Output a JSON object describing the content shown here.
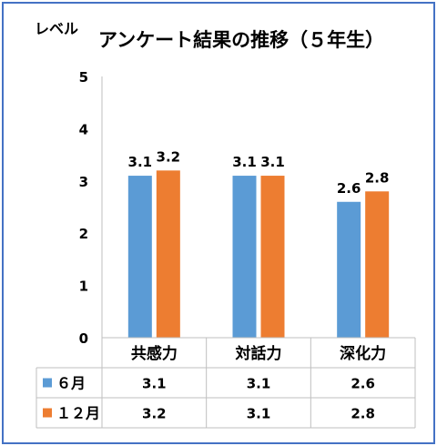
{
  "chart_data": {
    "type": "bar",
    "title": "アンケート結果の推移（５年生）",
    "ylabel": "レベル",
    "categories": [
      "共感力",
      "対話力",
      "深化力"
    ],
    "ylim": [
      0,
      5
    ],
    "yticks": [
      "0",
      "1",
      "2",
      "3",
      "4",
      "5"
    ],
    "series": [
      {
        "name": "６月",
        "color": "#5b9bd5",
        "values": [
          3.1,
          3.1,
          2.6
        ],
        "labels": [
          "3.1",
          "3.1",
          "2.6"
        ]
      },
      {
        "name": "１２月",
        "color": "#ed7d31",
        "values": [
          3.2,
          3.1,
          2.8
        ],
        "labels": [
          "3.2",
          "3.1",
          "2.8"
        ]
      }
    ],
    "data_table": true,
    "legend_placement": "data-table"
  },
  "colors": {
    "frame_border": "#4472c4",
    "gridline": "#d9d9d9"
  }
}
